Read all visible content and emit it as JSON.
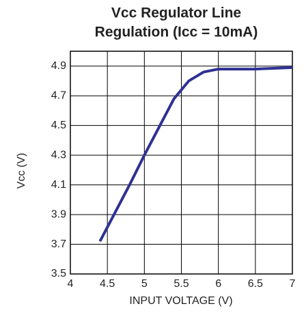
{
  "chart_data": {
    "type": "line",
    "title": [
      "Vcc Regulator Line",
      "Regulation (Icc = 10mA)"
    ],
    "xlabel": "INPUT VOLTAGE (V)",
    "ylabel": "Vcc (V)",
    "x": [
      4.4,
      4.6,
      4.8,
      5.0,
      5.2,
      5.4,
      5.6,
      5.8,
      6.0,
      6.5,
      7.0
    ],
    "series": [
      {
        "name": "Vcc",
        "color": "#2e3192",
        "values": [
          3.72,
          3.91,
          4.1,
          4.3,
          4.49,
          4.68,
          4.8,
          4.86,
          4.88,
          4.88,
          4.89
        ]
      }
    ],
    "xlim": [
      4,
      7
    ],
    "xticks": [
      4,
      4.5,
      5,
      5.5,
      6,
      6.5,
      7
    ],
    "ylim": [
      3.5,
      5.0
    ],
    "yticks": [
      3.5,
      3.7,
      3.9,
      4.1,
      4.3,
      4.5,
      4.7,
      4.9
    ],
    "grid": true
  }
}
